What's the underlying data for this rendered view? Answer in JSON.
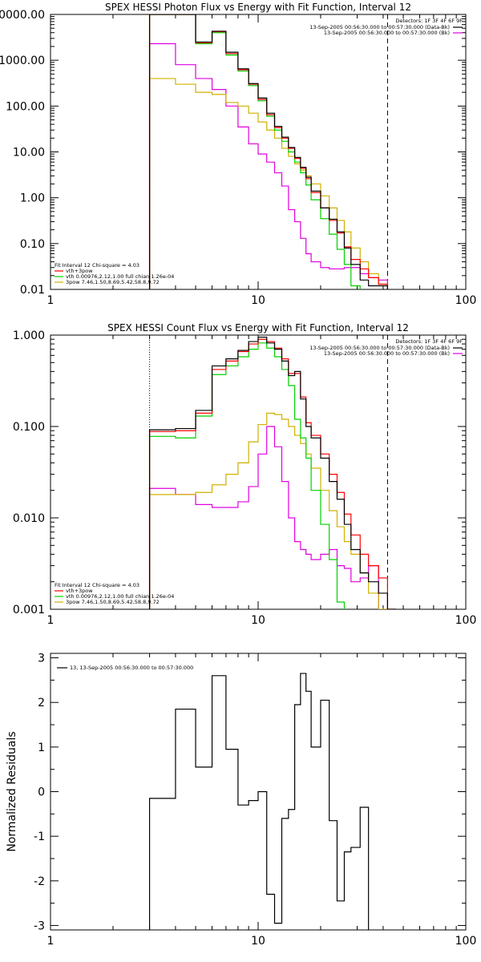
{
  "chart_data": [
    {
      "type": "line",
      "title": "SPEX HESSI Photon Flux vs Energy with Fit Function, Interval 12",
      "xlabel": "",
      "ylabel": "",
      "xscale": "log",
      "yscale": "log",
      "xlim": [
        1,
        100
      ],
      "ylim": [
        0.01,
        10000
      ],
      "x_ticks": [
        "1",
        "10",
        "100"
      ],
      "y_ticks": [
        "0.01",
        "0.10",
        "1.00",
        "10.00",
        "100.00",
        "1000.00",
        "10000.00"
      ],
      "legend_top": [
        "Detectors: 1F 3F 4F 6F 9F",
        "13-Sep-2005 00:56:30.000 to 00:57:30.000 (Data-Bk)",
        "13-Sep-2005 00:56:30.000 to 00:57:30.000 (Bk)"
      ],
      "legend_bottom": [
        "Fit Interval 12   Chi-square = 4.03",
        "vth+3pow",
        "vth 0.00976,2.12,1.00  full chian 1.26e-04",
        "3pow 7.46,1.50,8.69,5.42,58.8,9.72"
      ],
      "vlines": [
        3,
        42
      ],
      "edges": [
        3,
        4,
        5,
        6,
        7,
        8,
        9,
        10,
        11,
        12,
        13,
        14,
        15,
        16,
        17,
        18,
        20,
        22,
        24,
        26,
        28,
        31,
        34,
        38,
        42
      ],
      "series": [
        {
          "color": "#000000",
          "values": [
            10000,
            10000,
            2500,
            4300,
            1500,
            650,
            310,
            150,
            70,
            36,
            21,
            12.5,
            7.6,
            4.6,
            2.8,
            1.4,
            0.6,
            0.34,
            0.18,
            0.08,
            0.035,
            0.016,
            0.012,
            0.012
          ]
        },
        {
          "color": "#ff0000",
          "values": [
            10000,
            10000,
            2400,
            4200,
            1400,
            620,
            300,
            140,
            65,
            34,
            20,
            12,
            7.2,
            4.4,
            2.6,
            1.3,
            0.6,
            0.32,
            0.17,
            0.085,
            0.045,
            0.028,
            0.018,
            0.013
          ]
        },
        {
          "color": "#00d000",
          "values": [
            10000,
            10000,
            2300,
            4000,
            1300,
            580,
            280,
            130,
            60,
            30,
            17,
            10,
            6.0,
            3.5,
            1.9,
            0.9,
            0.35,
            0.16,
            0.075,
            0.035,
            0.012
          ]
        },
        {
          "color": "#d0b000",
          "values": [
            400,
            300,
            200,
            180,
            120,
            100,
            70,
            45,
            30,
            20,
            12,
            8,
            5.5,
            4.0,
            3.0,
            2.0,
            1.1,
            0.6,
            0.32,
            0.18,
            0.08,
            0.04,
            0.022,
            0.013
          ]
        },
        {
          "color": "#e000e0",
          "values": [
            2300,
            800,
            400,
            230,
            100,
            35,
            15,
            9,
            6,
            3.5,
            1.8,
            0.55,
            0.3,
            0.13,
            0.06,
            0.04,
            0.03,
            0.028,
            0.028,
            0.03,
            0.03,
            0.022,
            0.018,
            0.016
          ]
        }
      ]
    },
    {
      "type": "line",
      "title": "SPEX HESSI Count Flux vs Energy with Fit Function, Interval 12",
      "xlabel": "",
      "ylabel": "",
      "xscale": "log",
      "yscale": "log",
      "xlim": [
        1,
        100
      ],
      "ylim": [
        0.001,
        1.0
      ],
      "x_ticks": [
        "1",
        "10",
        "100"
      ],
      "y_ticks": [
        "0.001",
        "0.010",
        "0.100",
        "1.000"
      ],
      "legend_top": [
        "Detectors: 1F 3F 4F 6F 9F",
        "13-Sep-2005 00:56:30.000 to 00:57:30.000 (Data-Bk)",
        "13-Sep-2005 00:56:30.000 to 00:57:30.000 (Bk)"
      ],
      "legend_bottom": [
        "Fit Interval 12   Chi-square = 4.03",
        "vth+3pow",
        "vth 0.00976,2.12,1.00  full chian 1.26e-04",
        "3pow 7.46,1.50,8.69,5.42,58.8,9.72"
      ],
      "vlines": [
        3,
        42
      ],
      "edges": [
        3,
        4,
        5,
        6,
        7,
        8,
        9,
        10,
        11,
        12,
        13,
        14,
        15,
        16,
        17,
        18,
        20,
        22,
        24,
        26,
        28,
        31,
        34,
        38,
        42,
        46
      ],
      "series": [
        {
          "color": "#000000",
          "values": [
            0.092,
            0.095,
            0.15,
            0.46,
            0.55,
            0.68,
            0.85,
            0.95,
            0.82,
            0.7,
            0.52,
            0.36,
            0.4,
            0.2,
            0.1,
            0.075,
            0.045,
            0.025,
            0.016,
            0.0085,
            0.0045,
            0.0025,
            0.002,
            0.0015,
            0.001
          ]
        },
        {
          "color": "#ff0000",
          "values": [
            0.088,
            0.09,
            0.14,
            0.42,
            0.52,
            0.66,
            0.8,
            0.9,
            0.85,
            0.72,
            0.55,
            0.38,
            0.38,
            0.21,
            0.11,
            0.08,
            0.05,
            0.03,
            0.019,
            0.011,
            0.0065,
            0.004,
            0.003,
            0.0022,
            0.001
          ]
        },
        {
          "color": "#00d000",
          "values": [
            0.078,
            0.075,
            0.13,
            0.37,
            0.46,
            0.58,
            0.7,
            0.82,
            0.72,
            0.58,
            0.42,
            0.28,
            0.12,
            0.075,
            0.045,
            0.02,
            0.0085,
            0.0035,
            0.0012
          ]
        },
        {
          "color": "#d0b000",
          "values": [
            0.018,
            0.018,
            0.019,
            0.023,
            0.03,
            0.04,
            0.068,
            0.105,
            0.14,
            0.135,
            0.12,
            0.1,
            0.08,
            0.065,
            0.05,
            0.035,
            0.02,
            0.012,
            0.008,
            0.0055,
            0.004,
            0.0025,
            0.0015,
            0.001
          ]
        },
        {
          "color": "#e000e0",
          "values": [
            0.021,
            0.018,
            0.014,
            0.013,
            0.013,
            0.015,
            0.022,
            0.05,
            0.1,
            0.06,
            0.025,
            0.01,
            0.0055,
            0.0045,
            0.004,
            0.0035,
            0.004,
            0.0045,
            0.003,
            0.0028,
            0.002,
            0.0022,
            0.003
          ]
        }
      ]
    },
    {
      "type": "line",
      "title": "",
      "xlabel": "",
      "ylabel": "Normalized Residuals",
      "xscale": "log",
      "yscale": "linear",
      "xlim": [
        1,
        100
      ],
      "ylim": [
        -3.1,
        3.1
      ],
      "x_ticks": [
        "1",
        "10",
        "100"
      ],
      "y_ticks": [
        "-3",
        "-2",
        "-1",
        "0",
        "1",
        "2",
        "3"
      ],
      "legend": "13, 13-Sep-2005 00:56:30.000 to 00:57:30.000",
      "edges": [
        3,
        4,
        5,
        6,
        7,
        8,
        9,
        10,
        11,
        12,
        13,
        14,
        15,
        16,
        17,
        18,
        20,
        22,
        24,
        26,
        28,
        31,
        34,
        38,
        42
      ],
      "series": [
        {
          "color": "#000000",
          "values": [
            -0.15,
            1.85,
            0.55,
            2.6,
            0.95,
            -0.3,
            -0.2,
            0.0,
            -2.3,
            -2.95,
            -0.6,
            -0.4,
            1.95,
            2.65,
            2.25,
            1.0,
            2.05,
            -0.65,
            -2.45,
            -1.35,
            -1.25,
            -0.35
          ]
        }
      ]
    }
  ]
}
